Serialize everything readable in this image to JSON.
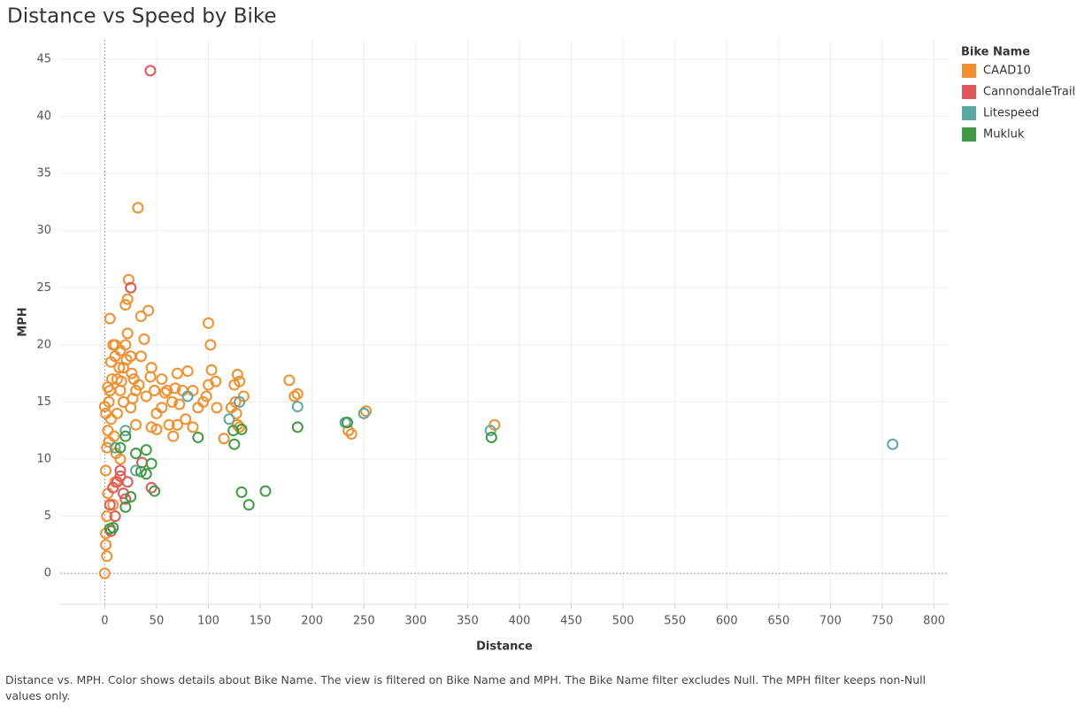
{
  "chart_data": {
    "type": "scatter",
    "title": "Distance vs Speed by Bike",
    "x_label": "Distance",
    "y_label": "MPH",
    "caption": "Distance vs. MPH.  Color shows details about Bike Name. The view is filtered on Bike Name and MPH. The Bike Name filter excludes Null. The MPH filter keeps non-Null values only.",
    "legend_title": "Bike Name",
    "legend": "right",
    "grid": true,
    "xlim": [
      -43,
      814
    ],
    "ylim": [
      -2.7,
      46.7
    ],
    "xticks": [
      0,
      50,
      100,
      150,
      200,
      250,
      300,
      350,
      400,
      450,
      500,
      550,
      600,
      650,
      700,
      750,
      800
    ],
    "yticks": [
      0,
      5,
      10,
      15,
      20,
      25,
      30,
      35,
      40,
      45
    ],
    "series": [
      {
        "name": "CAAD10",
        "color": "#f28e2b",
        "x": [
          0,
          2,
          1,
          1,
          2,
          3,
          1,
          2,
          3,
          1,
          4,
          5,
          7,
          6,
          8,
          5,
          10,
          12,
          15,
          18,
          20,
          22,
          25,
          28,
          30,
          32,
          23,
          20,
          22,
          35,
          42,
          38,
          45,
          48,
          50,
          55,
          60,
          65,
          70,
          75,
          80,
          85,
          62,
          66,
          70,
          78,
          85,
          90,
          95,
          100,
          102,
          103,
          100,
          98,
          107,
          108,
          115,
          125,
          128,
          130,
          126,
          127,
          128,
          130,
          134,
          122,
          178,
          183,
          186,
          250,
          252,
          235,
          238,
          376,
          45,
          50,
          30,
          15,
          10,
          8,
          12,
          18,
          25,
          40,
          55,
          0,
          3,
          35,
          15,
          10,
          14,
          26,
          33,
          44,
          58,
          68,
          72,
          6,
          9,
          11,
          4,
          16,
          21,
          27
        ],
        "y": [
          0,
          1.5,
          2.5,
          3.5,
          5,
          7,
          9,
          11,
          12.5,
          14,
          15,
          16,
          17,
          18.5,
          20,
          22.3,
          19,
          17,
          16,
          18,
          20,
          21,
          19,
          17,
          16,
          32,
          25.7,
          23.5,
          24,
          22.5,
          23,
          20.5,
          18,
          16,
          14,
          17,
          16,
          15,
          17.5,
          16,
          17.7,
          16,
          13,
          12,
          13,
          13.5,
          12.8,
          14.5,
          15,
          21.9,
          20,
          17.8,
          16.5,
          15.5,
          16.8,
          14.5,
          11.8,
          16.5,
          17.4,
          16.8,
          15,
          14,
          13,
          12.8,
          15.5,
          14.5,
          16.9,
          15.5,
          15.7,
          14,
          14.2,
          12.5,
          12.2,
          13,
          12.8,
          12.6,
          13,
          10,
          8,
          6,
          14,
          15,
          14.5,
          15.5,
          14.5,
          14.6,
          16.3,
          19,
          19.5,
          20,
          18,
          17.5,
          16.5,
          17.2,
          15.8,
          16.2,
          14.8,
          13.5,
          12,
          10.5,
          11.5,
          16.8,
          18.7,
          15.3
        ]
      },
      {
        "name": "CannondaleTrail",
        "color": "#e15759",
        "x": [
          44,
          25,
          5,
          8,
          12,
          15,
          18,
          20,
          10,
          36,
          45,
          6,
          15,
          22
        ],
        "y": [
          44,
          25,
          6,
          7.5,
          8,
          9,
          7,
          6.5,
          5,
          9.7,
          7.5,
          3.7,
          8.5,
          8
        ]
      },
      {
        "name": "Litespeed",
        "color": "#5ba8a3",
        "x": [
          760,
          186,
          232,
          250,
          372,
          80,
          120,
          20,
          130,
          10,
          30
        ],
        "y": [
          11.3,
          14.6,
          13.2,
          14,
          12.5,
          15.5,
          13.5,
          12.5,
          15,
          11,
          9
        ]
      },
      {
        "name": "Mukluk",
        "color": "#3f9b3f",
        "x": [
          90,
          124,
          125,
          132,
          132,
          139,
          155,
          186,
          234,
          373,
          40,
          45,
          48,
          40,
          25,
          20,
          15,
          20,
          30,
          8,
          5,
          35
        ],
        "y": [
          11.9,
          12.5,
          11.3,
          12.6,
          7.1,
          6,
          7.2,
          12.8,
          13.2,
          11.9,
          10.8,
          9.6,
          7.2,
          8.7,
          6.7,
          5.8,
          11,
          12,
          10.5,
          4,
          3.9,
          8.9
        ]
      }
    ]
  }
}
